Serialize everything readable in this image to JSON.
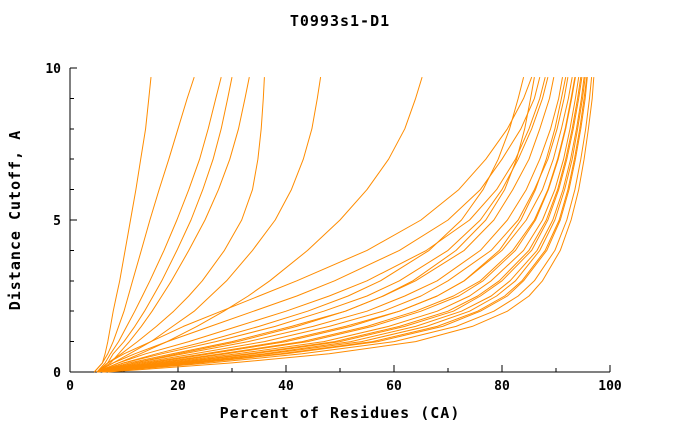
{
  "chart_data": {
    "type": "line",
    "title": "T0993s1-D1",
    "xlabel": "Percent of Residues (CA)",
    "ylabel": "Distance Cutoff, A",
    "xlim": [
      0,
      100
    ],
    "ylim": [
      0,
      10
    ],
    "x_ticks": [
      0,
      20,
      40,
      60,
      80,
      100
    ],
    "y_ticks": [
      0,
      5,
      10
    ],
    "x_minor_step": 10,
    "y_minor_step": 1,
    "legend": "none",
    "grid": false,
    "line_color": "#ff8c00",
    "axis_color": "#000000",
    "cutoffs": [
      0,
      0.3,
      0.6,
      1,
      1.5,
      2,
      2.5,
      3,
      4,
      5,
      6,
      7,
      8,
      9,
      9.7
    ],
    "curves": [
      [
        4.5,
        6,
        6.5,
        7,
        7.5,
        8,
        8.6,
        9.2,
        10.2,
        11.2,
        12.2,
        13.1,
        14,
        14.6,
        15
      ],
      [
        4.5,
        6,
        7,
        8,
        9,
        10,
        10.8,
        11.6,
        13.2,
        14.8,
        16.5,
        18.3,
        20,
        21.7,
        23
      ],
      [
        5,
        6.5,
        7.5,
        9,
        10.5,
        12,
        13.4,
        14.8,
        17.4,
        19.8,
        22,
        24,
        25.6,
        27,
        28
      ],
      [
        5,
        7,
        8,
        10,
        12,
        13.8,
        15.4,
        17,
        19.8,
        22.4,
        24.6,
        26.5,
        28,
        29.2,
        30
      ],
      [
        5,
        7.5,
        9,
        11,
        13.2,
        15.2,
        17,
        18.8,
        22,
        25,
        27.5,
        29.6,
        31.2,
        32.4,
        33.2
      ],
      [
        5,
        7,
        9.5,
        12.5,
        16,
        19.2,
        22,
        24.5,
        28.6,
        31.8,
        33.8,
        34.8,
        35.4,
        35.8,
        36
      ],
      [
        5,
        8,
        11,
        15,
        19,
        23,
        26,
        29,
        33.8,
        38,
        41,
        43.2,
        44.8,
        45.8,
        46.4
      ],
      [
        5,
        9,
        13,
        18,
        23.5,
        28.5,
        33,
        37,
        44,
        50,
        55,
        59,
        62,
        64,
        65.2
      ],
      [
        5,
        7,
        10,
        15,
        21,
        28,
        35,
        42,
        55,
        65,
        72,
        77,
        81,
        84,
        85.5
      ],
      [
        5,
        8,
        12,
        18,
        26,
        34,
        42,
        49,
        61,
        70,
        76,
        80,
        83.5,
        86,
        87
      ],
      [
        5,
        9,
        14,
        22,
        31,
        40,
        48,
        55,
        66,
        74,
        79,
        82.5,
        85,
        87,
        88
      ],
      [
        5,
        10,
        16,
        25,
        35,
        44,
        51.5,
        57.5,
        66.5,
        72.5,
        76.5,
        79.3,
        81.4,
        83,
        84
      ],
      [
        5,
        10,
        17,
        27,
        38,
        47,
        55,
        61,
        70,
        76,
        80,
        83,
        85.5,
        87.5,
        88.5
      ],
      [
        5,
        11,
        19,
        30,
        41,
        51,
        58,
        64,
        73,
        78.5,
        82,
        85,
        87,
        88.8,
        89.6
      ],
      [
        5,
        12,
        20,
        31,
        42,
        51,
        58,
        63.5,
        71.5,
        77,
        80.5,
        82.7,
        84.2,
        85.3,
        86
      ],
      [
        5,
        12,
        21,
        33,
        45,
        55,
        62,
        68,
        76,
        81,
        84.5,
        87,
        89,
        90.5,
        91.2
      ],
      [
        5,
        13,
        23,
        36,
        48,
        58,
        65,
        70,
        78,
        83,
        86,
        88.5,
        90.2,
        91.5,
        92.2
      ],
      [
        5,
        14,
        25,
        39,
        51,
        61,
        68,
        73,
        80,
        84.5,
        87.5,
        89.5,
        91,
        92.3,
        93
      ],
      [
        5,
        15,
        26,
        40,
        52,
        61,
        68,
        73,
        79.5,
        83.5,
        86.2,
        88.2,
        89.8,
        91,
        91.8
      ],
      [
        5,
        16,
        28,
        43,
        55,
        64,
        71,
        76,
        82,
        86,
        88.5,
        90.3,
        91.7,
        92.8,
        93.5
      ],
      [
        5,
        17,
        29,
        44,
        56,
        65,
        72,
        76.5,
        82.5,
        86.2,
        88.6,
        90.4,
        91.8,
        92.9,
        93.6
      ],
      [
        5,
        18,
        31,
        47,
        59,
        68,
        74,
        78,
        84,
        87.5,
        89.8,
        91.4,
        92.6,
        93.6,
        94.2
      ],
      [
        5,
        19,
        33,
        49,
        61,
        70,
        75.5,
        79.5,
        85,
        88.2,
        90.3,
        91.8,
        93,
        94,
        94.6
      ],
      [
        5,
        20,
        34,
        50,
        62,
        71,
        76,
        80,
        85.5,
        88.5,
        90.5,
        92,
        93.2,
        94.2,
        94.8
      ],
      [
        6,
        21,
        36,
        52,
        64,
        72.5,
        78,
        81.5,
        86.5,
        89.4,
        91.3,
        92.7,
        93.8,
        94.7,
        95.2
      ],
      [
        5,
        22,
        37,
        54,
        66,
        74,
        79,
        82.5,
        87,
        89.8,
        91.6,
        93,
        94,
        94.9,
        95.4
      ],
      [
        6,
        23,
        39,
        56,
        68,
        75.5,
        80.5,
        83.7,
        88,
        90.6,
        92.2,
        93.4,
        94.4,
        95.2,
        95.7
      ],
      [
        6,
        24,
        40,
        57,
        69,
        76,
        81,
        84,
        88.3,
        90.8,
        92.4,
        93.6,
        94.6,
        95.4,
        95.8
      ],
      [
        6,
        26,
        43,
        60,
        71.5,
        78.5,
        83,
        86,
        89.8,
        92,
        93.5,
        94.6,
        95.5,
        96.2,
        96.6
      ],
      [
        7,
        30,
        48,
        64,
        74.5,
        81,
        85,
        87.5,
        90.8,
        92.8,
        94.2,
        95.2,
        96,
        96.7,
        97
      ]
    ]
  }
}
